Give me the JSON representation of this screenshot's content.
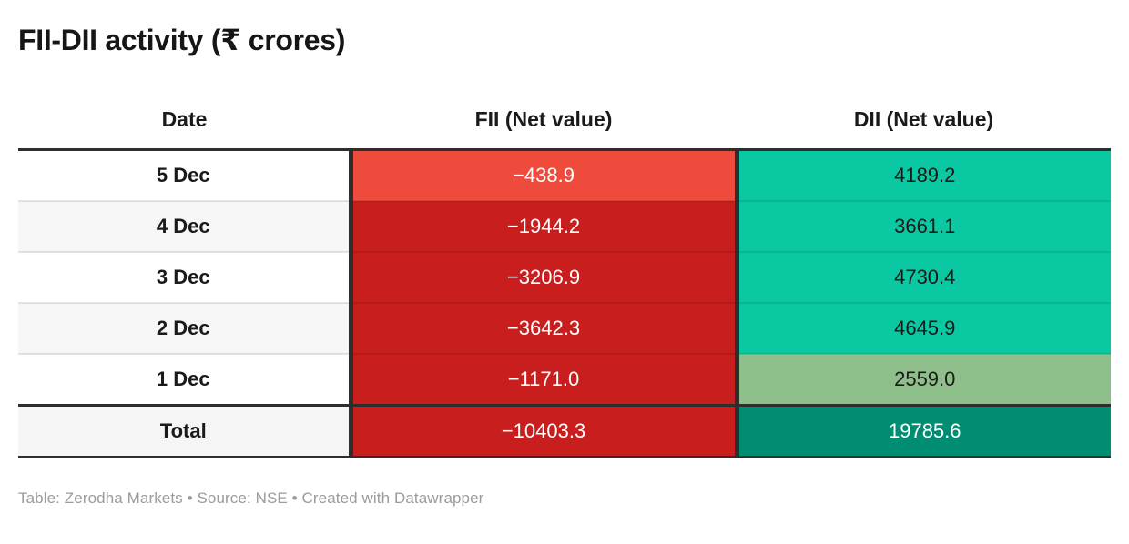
{
  "title": "FII-DII activity (₹ crores)",
  "table": {
    "columns": [
      "Date",
      "FII (Net value)",
      "DII (Net value)"
    ],
    "rows": [
      {
        "date": "5 Dec",
        "fii": "−438.9",
        "dii": "4189.2",
        "fii_bg": "#ee4b3c",
        "dii_bg": "#0ac9a2"
      },
      {
        "date": "4 Dec",
        "fii": "−1944.2",
        "dii": "3661.1",
        "fii_bg": "#c81e1e",
        "dii_bg": "#0ac9a2"
      },
      {
        "date": "3 Dec",
        "fii": "−3206.9",
        "dii": "4730.4",
        "fii_bg": "#c81e1e",
        "dii_bg": "#0ac9a2"
      },
      {
        "date": "2 Dec",
        "fii": "−3642.3",
        "dii": "4645.9",
        "fii_bg": "#c81e1e",
        "dii_bg": "#0ac9a2"
      },
      {
        "date": "1 Dec",
        "fii": "−1171.0",
        "dii": "2559.0",
        "fii_bg": "#c81e1e",
        "dii_bg": "#8fc08b"
      }
    ],
    "total": {
      "label": "Total",
      "fii": "−10403.3",
      "dii": "19785.6",
      "fii_bg": "#c81e1e",
      "dii_bg": "#008d72"
    }
  },
  "footer": {
    "text": "Table: Zerodha Markets • Source: NSE • Created with Datawrapper"
  },
  "colors": {
    "fii_negative_light": "#ee4b3c",
    "fii_negative_dark": "#c81e1e",
    "dii_positive_teal": "#0ac9a2",
    "dii_positive_sage": "#8fc08b",
    "dii_total_green": "#008d72",
    "table_border_dark": "#2e2e2e",
    "zebra_gray": "#f7f7f7",
    "footer_gray": "#9b9b9b",
    "value_text_light": "#ffffff",
    "value_text_dark": "#1a1a1a"
  },
  "chart_data": {
    "type": "table",
    "title": "FII-DII activity (₹ crores)",
    "columns": [
      "Date",
      "FII (Net value)",
      "DII (Net value)"
    ],
    "rows": [
      [
        "5 Dec",
        -438.9,
        4189.2
      ],
      [
        "4 Dec",
        -1944.2,
        3661.1
      ],
      [
        "3 Dec",
        -3206.9,
        4730.4
      ],
      [
        "2 Dec",
        -3642.3,
        4645.9
      ],
      [
        "1 Dec",
        -1171.0,
        2559.0
      ],
      [
        "Total",
        -10403.3,
        19785.6
      ]
    ],
    "notes": "FII cells shaded red (negative), DII cells shaded green (positive); heatmap-style cell backgrounds"
  }
}
